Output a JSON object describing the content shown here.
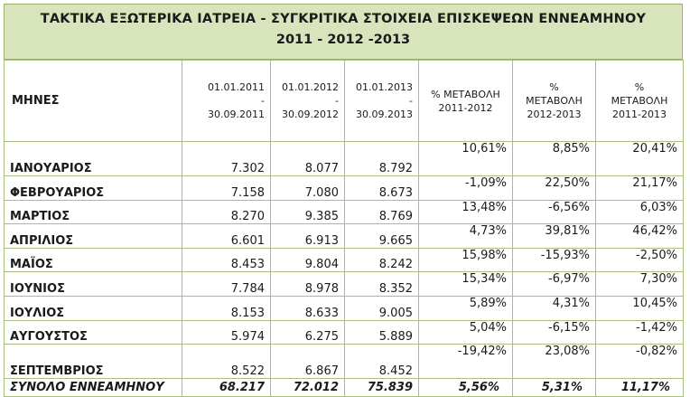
{
  "title": {
    "line1": "ΤΑΚΤΙΚΑ ΕΞΩΤΕΡΙΚΑ ΙΑΤΡΕΙΑ - ΣΥΓΚΡΙΤΙΚΑ ΣΤΟΙΧΕΙΑ ΕΠΙΣΚΕΨΕΩΝ ΕΝΝΕΑΜΗΝΟΥ",
    "line2": "2011 - 2012 -2013"
  },
  "columns": {
    "month": "ΜΗΝΕΣ",
    "p2011": [
      "01.01.2011",
      "-",
      "30.09.2011"
    ],
    "p2012": [
      "01.01.2012",
      "-",
      "30.09.2012"
    ],
    "p2013": [
      "01.01.2013",
      "-",
      "30.09.2013"
    ],
    "ch1112": [
      "% ΜΕΤΑΒΟΛΗ",
      "2011-2012"
    ],
    "ch1213": [
      "%",
      "ΜΕΤΑΒΟΛΗ",
      "2012-2013"
    ],
    "ch1113": [
      "%",
      "ΜΕΤΑΒΟΛΗ",
      "2011-2013"
    ]
  },
  "rows": [
    {
      "month": "ΙΑΝΟΥΑΡΙΟΣ",
      "v2011": "7.302",
      "v2012": "8.077",
      "v2013": "8.792",
      "c1112": "10,61%",
      "c1213": "8,85%",
      "c1113": "20,41%"
    },
    {
      "month": "ΦΕΒΡΟΥΑΡΙΟΣ",
      "v2011": "7.158",
      "v2012": "7.080",
      "v2013": "8.673",
      "c1112": "-1,09%",
      "c1213": "22,50%",
      "c1113": "21,17%"
    },
    {
      "month": "ΜΑΡΤΙΟΣ",
      "v2011": "8.270",
      "v2012": "9.385",
      "v2013": "8.769",
      "c1112": "13,48%",
      "c1213": "-6,56%",
      "c1113": "6,03%"
    },
    {
      "month": "ΑΠΡΙΛΙΟΣ",
      "v2011": "6.601",
      "v2012": "6.913",
      "v2013": "9.665",
      "c1112": "4,73%",
      "c1213": "39,81%",
      "c1113": "46,42%"
    },
    {
      "month": "ΜΑΪΟΣ",
      "v2011": "8.453",
      "v2012": "9.804",
      "v2013": "8.242",
      "c1112": "15,98%",
      "c1213": "-15,93%",
      "c1113": "-2,50%"
    },
    {
      "month": "ΙΟΥΝΙΟΣ",
      "v2011": "7.784",
      "v2012": "8.978",
      "v2013": "8.352",
      "c1112": "15,34%",
      "c1213": "-6,97%",
      "c1113": "7,30%"
    },
    {
      "month": "ΙΟΥΛΙΟΣ",
      "v2011": "8.153",
      "v2012": "8.633",
      "v2013": "9.005",
      "c1112": "5,89%",
      "c1213": "4,31%",
      "c1113": "10,45%"
    },
    {
      "month": "ΑΥΓΟΥΣΤΟΣ",
      "v2011": "5.974",
      "v2012": "6.275",
      "v2013": "5.889",
      "c1112": "5,04%",
      "c1213": "-6,15%",
      "c1113": "-1,42%"
    },
    {
      "month": "ΣΕΠΤΕΜΒΡΙΟΣ",
      "v2011": "8.522",
      "v2012": "6.867",
      "v2013": "8.452",
      "c1112": "-19,42%",
      "c1213": "23,08%",
      "c1113": "-0,82%"
    }
  ],
  "total": {
    "month": "ΣΥΝΟΛΟ ΕΝΝΕΑΜΗΝΟΥ",
    "v2011": "68.217",
    "v2012": "72.012",
    "v2013": "75.839",
    "c1112": "5,56%",
    "c1213": "5,31%",
    "c1113": "11,17%"
  },
  "colors": {
    "header_fill": "#d8e4bc",
    "border": "#a9bf7e"
  }
}
